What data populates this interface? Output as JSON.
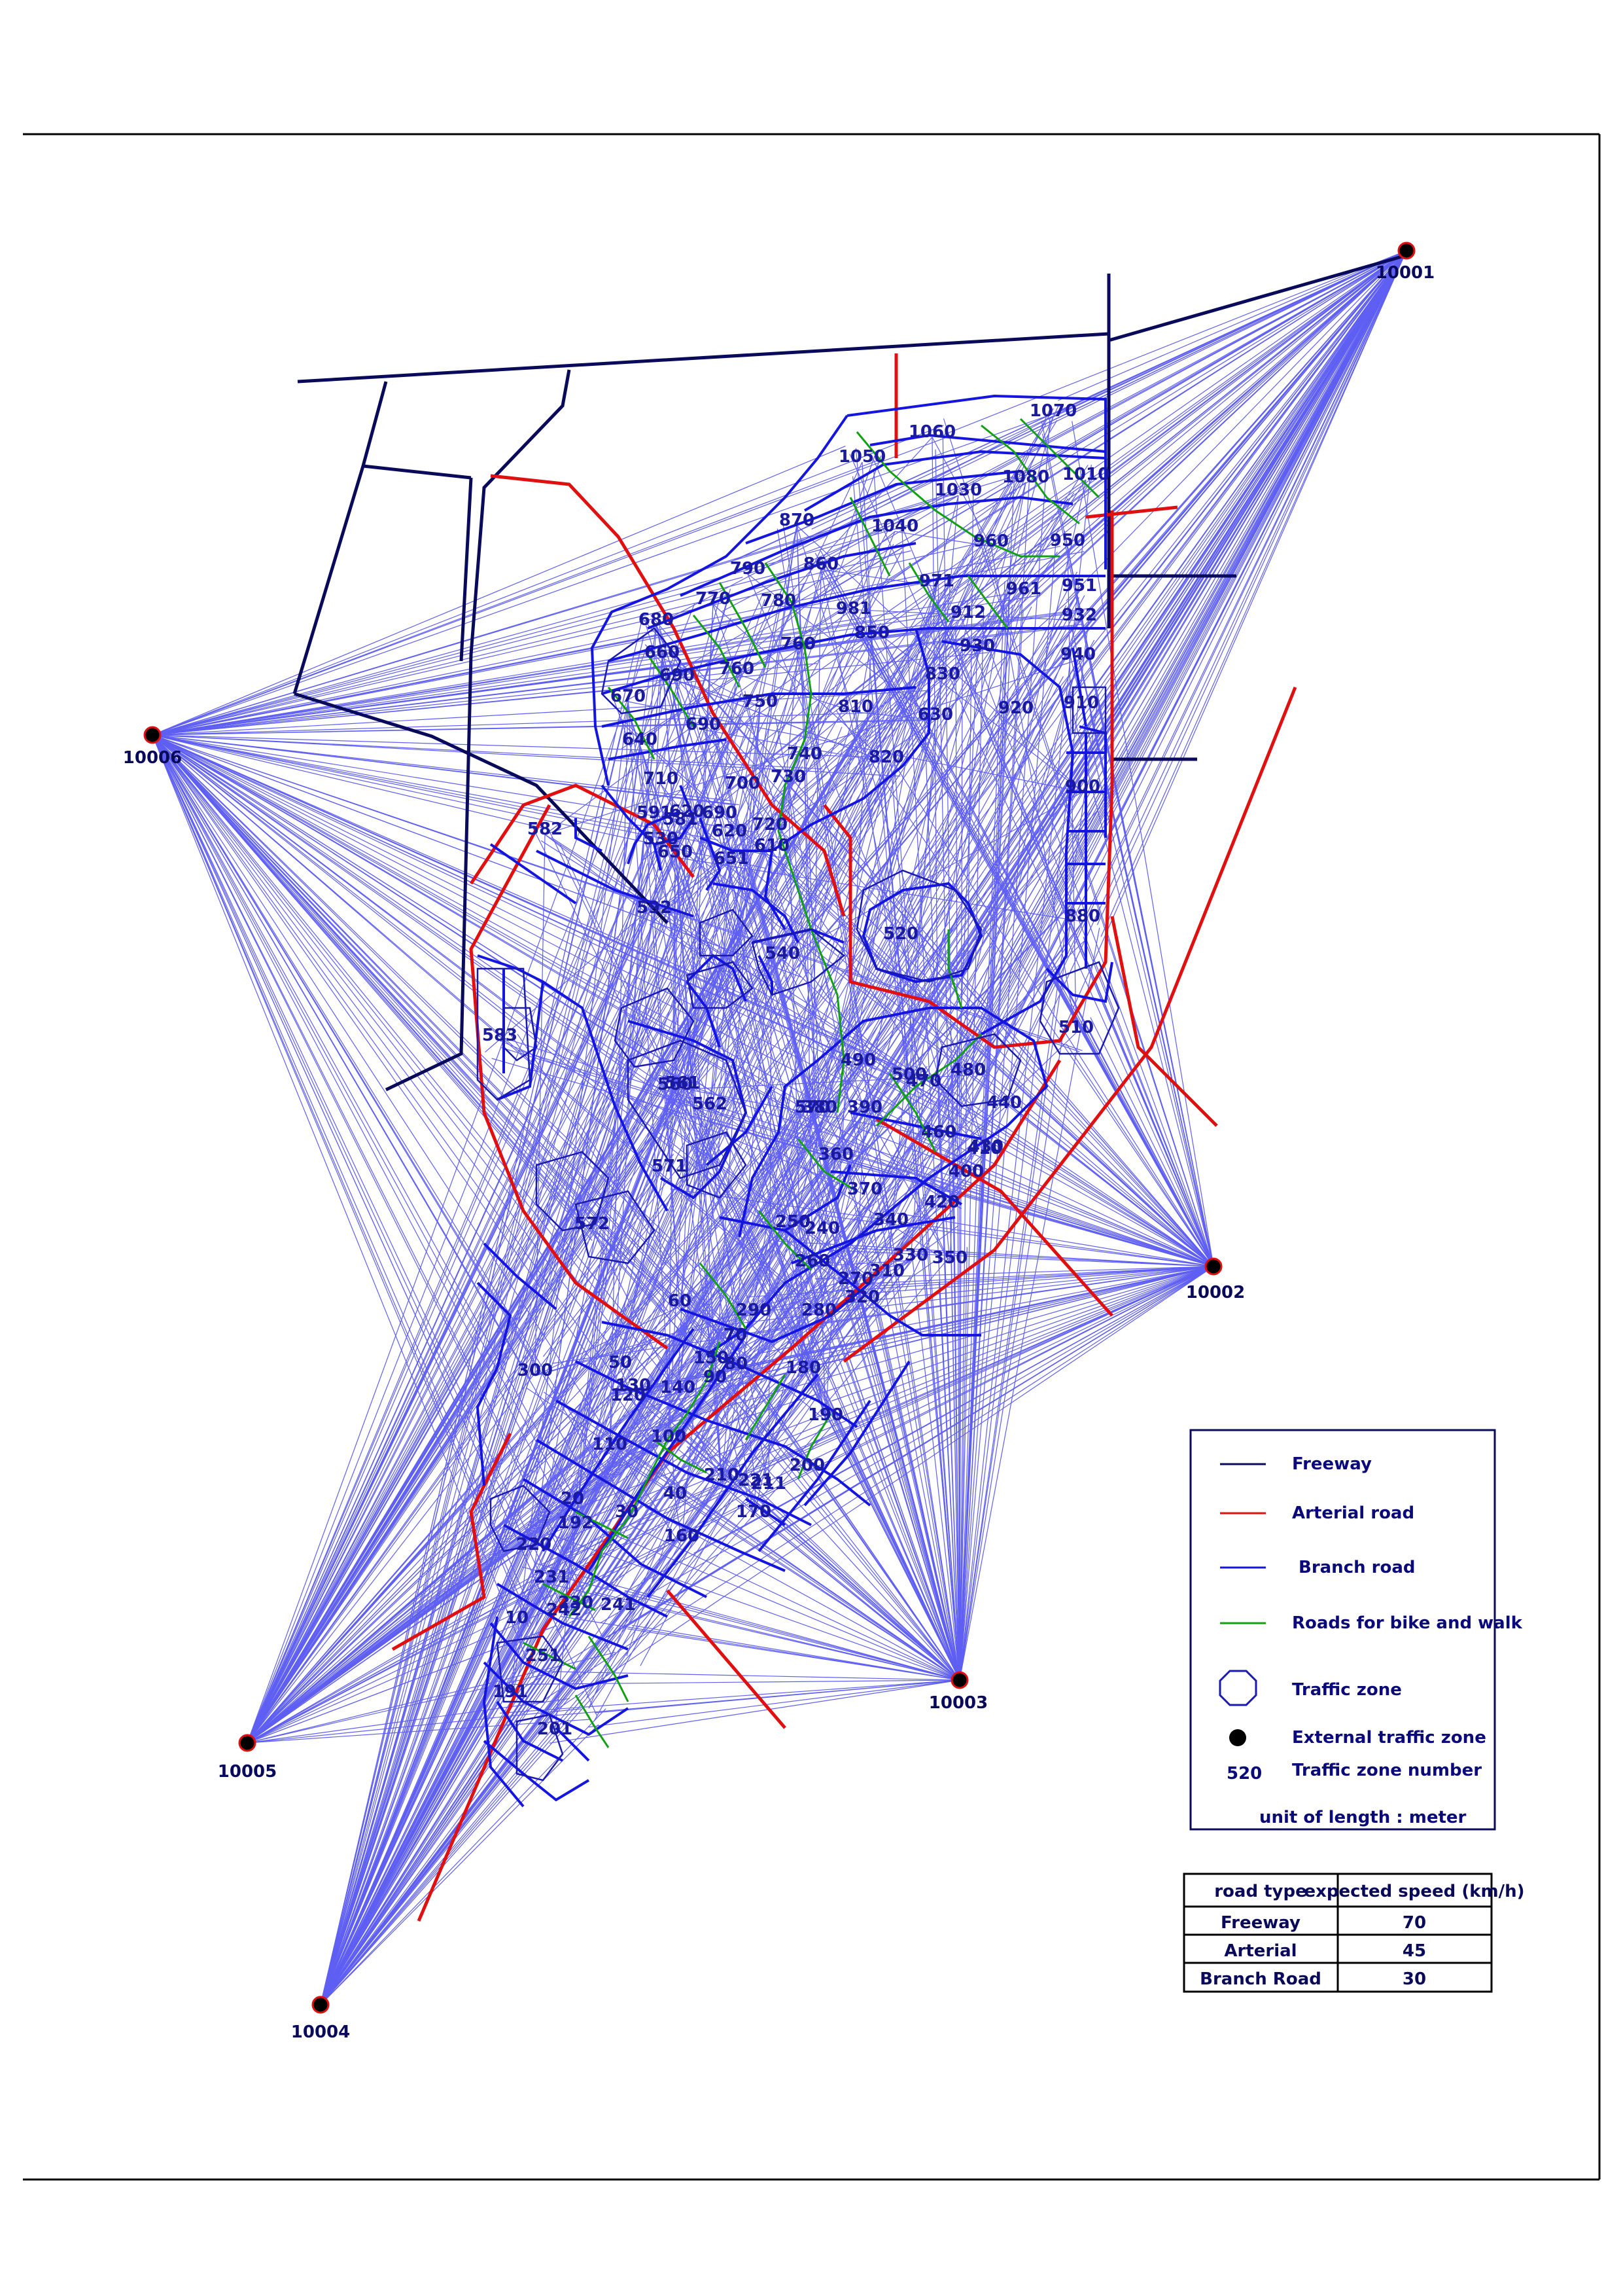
{
  "colors": {
    "freeway": "#0a0a5a",
    "arterial": "#e01010",
    "branch": "#1515e0",
    "bike": "#10a010",
    "zone": "#1a1ab0",
    "desire": "#2a2af0"
  },
  "external_zones": [
    {
      "id": "10001",
      "label": "10001"
    },
    {
      "id": "10002",
      "label": "10002"
    },
    {
      "id": "10003",
      "label": "10003"
    },
    {
      "id": "10004",
      "label": "10004"
    },
    {
      "id": "10005",
      "label": "10005"
    },
    {
      "id": "10006",
      "label": "10006"
    }
  ],
  "zones": [
    "1070",
    "1060",
    "1050",
    "1080",
    "1010",
    "1040",
    "1030",
    "960",
    "950",
    "870",
    "790",
    "860",
    "981",
    "961",
    "951",
    "971",
    "912",
    "932",
    "680",
    "770",
    "780",
    "850",
    "660",
    "690",
    "760",
    "760",
    "830",
    "930",
    "940",
    "920",
    "910",
    "670",
    "690",
    "750",
    "740",
    "810",
    "820",
    "630",
    "640",
    "710",
    "730",
    "700",
    "720",
    "900",
    "582",
    "530",
    "620",
    "690",
    "620",
    "610",
    "591",
    "581",
    "592",
    "651",
    "650",
    "540",
    "520",
    "880",
    "510",
    "583",
    "560",
    "480",
    "490",
    "500",
    "562",
    "561",
    "570",
    "571",
    "572",
    "470",
    "460",
    "390",
    "440",
    "430",
    "400",
    "410",
    "420",
    "380",
    "360",
    "370",
    "340",
    "350",
    "330",
    "320",
    "310",
    "300",
    "240",
    "250",
    "260",
    "270",
    "280",
    "290",
    "150",
    "140",
    "130",
    "120",
    "110",
    "100",
    "90",
    "80",
    "70",
    "60",
    "50",
    "20",
    "30",
    "40",
    "160",
    "170",
    "180",
    "190",
    "200",
    "210",
    "211",
    "221",
    "220",
    "230",
    "231",
    "241",
    "251",
    "242",
    "10",
    "191",
    "192",
    "201"
  ],
  "legend": {
    "freeway": "Freeway",
    "arterial": "Arterial road",
    "branch": "Branch road",
    "bike": "Roads for bike and walk",
    "zone": "Traffic zone",
    "external": "External traffic zone",
    "zone_number_sample": "520",
    "zone_number": "Traffic zone number",
    "unit": "unit of length : meter"
  },
  "speed_table": {
    "headers": [
      "road type",
      "expected speed (km/h)"
    ],
    "rows": [
      {
        "type": "Freeway",
        "speed": "70"
      },
      {
        "type": "Arterial",
        "speed": "45"
      },
      {
        "type": "Branch Road",
        "speed": "30"
      }
    ]
  }
}
